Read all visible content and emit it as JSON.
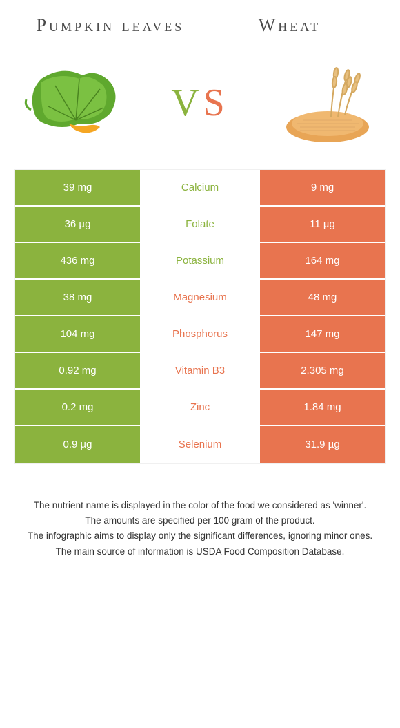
{
  "left_food": "Pumpkin leaves",
  "right_food": "Wheat",
  "vs": {
    "v": "V",
    "s": "S"
  },
  "colors": {
    "left": "#8bb33e",
    "right": "#e8744f",
    "mid_bg": "#ffffff",
    "cell_text": "#ffffff",
    "border": "#f0f0f0",
    "title": "#4a4a4a",
    "footer": "#333333"
  },
  "rows": [
    {
      "nutrient": "Calcium",
      "left": "39 mg",
      "right": "9 mg",
      "winner": "left"
    },
    {
      "nutrient": "Folate",
      "left": "36 µg",
      "right": "11 µg",
      "winner": "left"
    },
    {
      "nutrient": "Potassium",
      "left": "436 mg",
      "right": "164 mg",
      "winner": "left"
    },
    {
      "nutrient": "Magnesium",
      "left": "38 mg",
      "right": "48 mg",
      "winner": "right"
    },
    {
      "nutrient": "Phosphorus",
      "left": "104 mg",
      "right": "147 mg",
      "winner": "right"
    },
    {
      "nutrient": "Vitamin B3",
      "left": "0.92 mg",
      "right": "2.305 mg",
      "winner": "right"
    },
    {
      "nutrient": "Zinc",
      "left": "0.2 mg",
      "right": "1.84 mg",
      "winner": "right"
    },
    {
      "nutrient": "Selenium",
      "left": "0.9 µg",
      "right": "31.9 µg",
      "winner": "right"
    }
  ],
  "footer": [
    "The nutrient name is displayed in the color of the food we considered as 'winner'.",
    "The amounts are specified per 100 gram of the product.",
    "The infographic aims to display only the significant differences, ignoring minor ones.",
    "The main source of information is USDA Food Composition Database."
  ]
}
